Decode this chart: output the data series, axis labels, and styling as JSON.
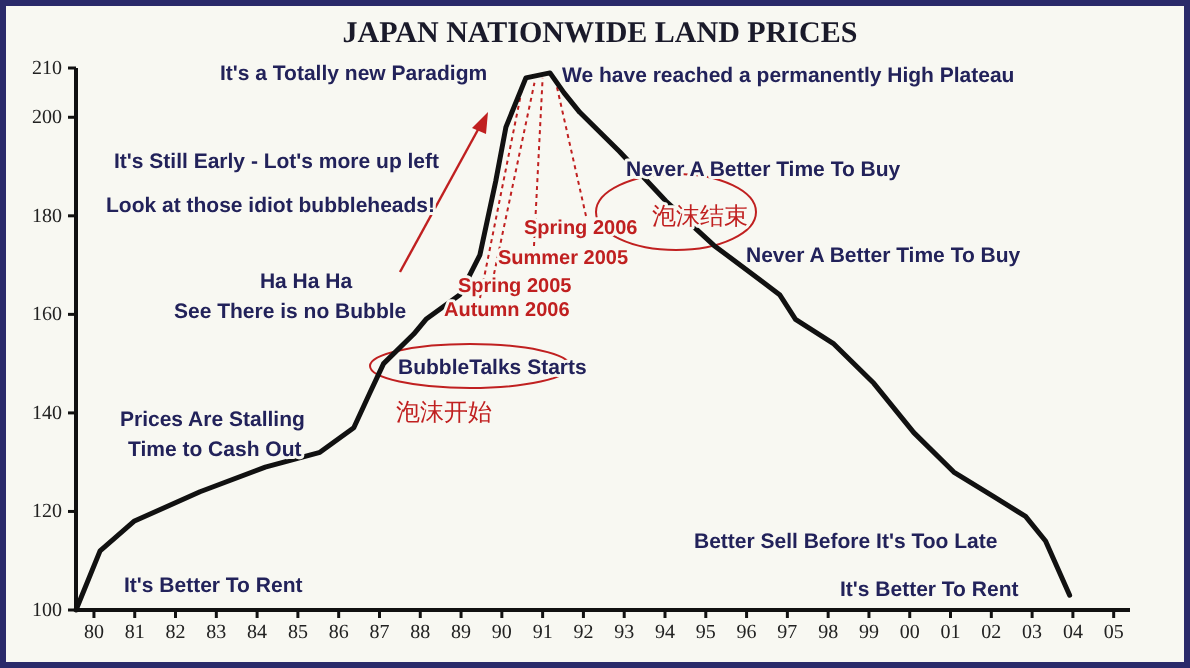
{
  "chart_data": {
    "type": "line",
    "title": "JAPAN NATIONWIDE LAND PRICES",
    "x": [
      1979.56,
      1980.15,
      1980.98,
      1982.6,
      1984.2,
      1985.54,
      1986.37,
      1986.76,
      1987.1,
      1987.84,
      1988.14,
      1988.97,
      1989.46,
      1989.85,
      1990.1,
      1990.59,
      1991.18,
      1991.52,
      1991.91,
      1992.89,
      1994.02,
      1995.2,
      1996.81,
      1997.2,
      1998.14,
      1999.12,
      2000.1,
      2001.08,
      2002.06,
      2002.84,
      2003.33,
      2003.92
    ],
    "values": [
      100,
      112,
      118,
      124,
      129,
      132,
      137,
      144,
      150,
      156,
      159,
      164,
      172,
      187,
      198,
      208,
      209,
      205,
      201,
      193,
      183,
      174,
      164,
      159,
      154,
      146,
      136,
      128,
      123,
      119,
      114,
      103
    ],
    "color": "#111111",
    "marker": "none",
    "line_style": "solid",
    "grid": false,
    "xlim": [
      1979.56,
      2005.4
    ],
    "ylim": [
      100,
      210
    ],
    "xticks": [
      {
        "value": 1980,
        "label": "80"
      },
      {
        "value": 1981,
        "label": "81"
      },
      {
        "value": 1982,
        "label": "82"
      },
      {
        "value": 1983,
        "label": "83"
      },
      {
        "value": 1984,
        "label": "84"
      },
      {
        "value": 1985,
        "label": "85"
      },
      {
        "value": 1986,
        "label": "86"
      },
      {
        "value": 1987,
        "label": "87"
      },
      {
        "value": 1988,
        "label": "88"
      },
      {
        "value": 1989,
        "label": "89"
      },
      {
        "value": 1990,
        "label": "90"
      },
      {
        "value": 1991,
        "label": "91"
      },
      {
        "value": 1992,
        "label": "92"
      },
      {
        "value": 1993,
        "label": "93"
      },
      {
        "value": 1994,
        "label": "94"
      },
      {
        "value": 1995,
        "label": "95"
      },
      {
        "value": 1996,
        "label": "96"
      },
      {
        "value": 1997,
        "label": "97"
      },
      {
        "value": 1998,
        "label": "98"
      },
      {
        "value": 1999,
        "label": "99"
      },
      {
        "value": 2000,
        "label": "00"
      },
      {
        "value": 2001,
        "label": "01"
      },
      {
        "value": 2002,
        "label": "02"
      },
      {
        "value": 2003,
        "label": "03"
      },
      {
        "value": 2004,
        "label": "04"
      },
      {
        "value": 2005,
        "label": "05"
      }
    ],
    "yticks": [
      100,
      120,
      140,
      160,
      180,
      200,
      210
    ],
    "annotations": [
      "It's a Totally new Paradigm",
      "We have reached a permanently High Plateau",
      "It's Still Early - Lot's more up left",
      "Look at those idiot bubbleheads!",
      "Ha Ha Ha",
      "See There is no Bubble",
      {
        "text": "Spring 2005",
        "x": 1990.8,
        "y": 207
      },
      {
        "text": "Summer 2005",
        "x": 1991.0,
        "y": 208
      },
      {
        "text": "Spring 2006",
        "x": 1991.3,
        "y": 208
      },
      {
        "text": "Autumn 2006",
        "x": 1990.5,
        "y": 206
      },
      "Never A Better Time To Buy",
      "泡沫结束",
      "Never A Better Time To Buy",
      "BubbleTalks Starts",
      "泡沫开始",
      "Prices Are Stalling",
      "Time to Cash Out",
      "It's Better To Rent",
      "Better Sell Before It's Too Late",
      "It's Better To Rent"
    ]
  }
}
